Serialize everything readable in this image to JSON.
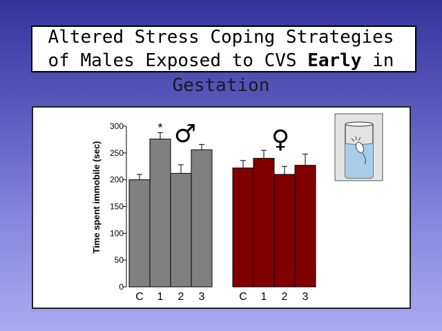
{
  "title": {
    "line1": "Altered Stress Coping Strategies",
    "line2_prefix": "of Males Exposed to CVS ",
    "line2_bold": "Early",
    "line2_suffix": " in",
    "line3": "Gestation"
  },
  "chart_data": {
    "type": "bar",
    "ylabel": "Time spent immobile (sec)",
    "ylim": [
      0,
      300
    ],
    "yticks": [
      0,
      50,
      100,
      150,
      200,
      250,
      300
    ],
    "groups": [
      {
        "symbol": "♂",
        "color": "#808080",
        "categories": [
          "C",
          "1",
          "2",
          "3"
        ],
        "values": [
          200,
          276,
          212,
          256
        ],
        "errors": [
          10,
          12,
          16,
          10
        ],
        "annotations": [
          "",
          "*",
          "",
          ""
        ]
      },
      {
        "symbol": "♀",
        "color": "#800000",
        "categories": [
          "C",
          "1",
          "2",
          "3"
        ],
        "values": [
          222,
          240,
          210,
          227
        ],
        "errors": [
          14,
          15,
          15,
          21
        ],
        "annotations": [
          "",
          "",
          "",
          ""
        ]
      }
    ]
  }
}
